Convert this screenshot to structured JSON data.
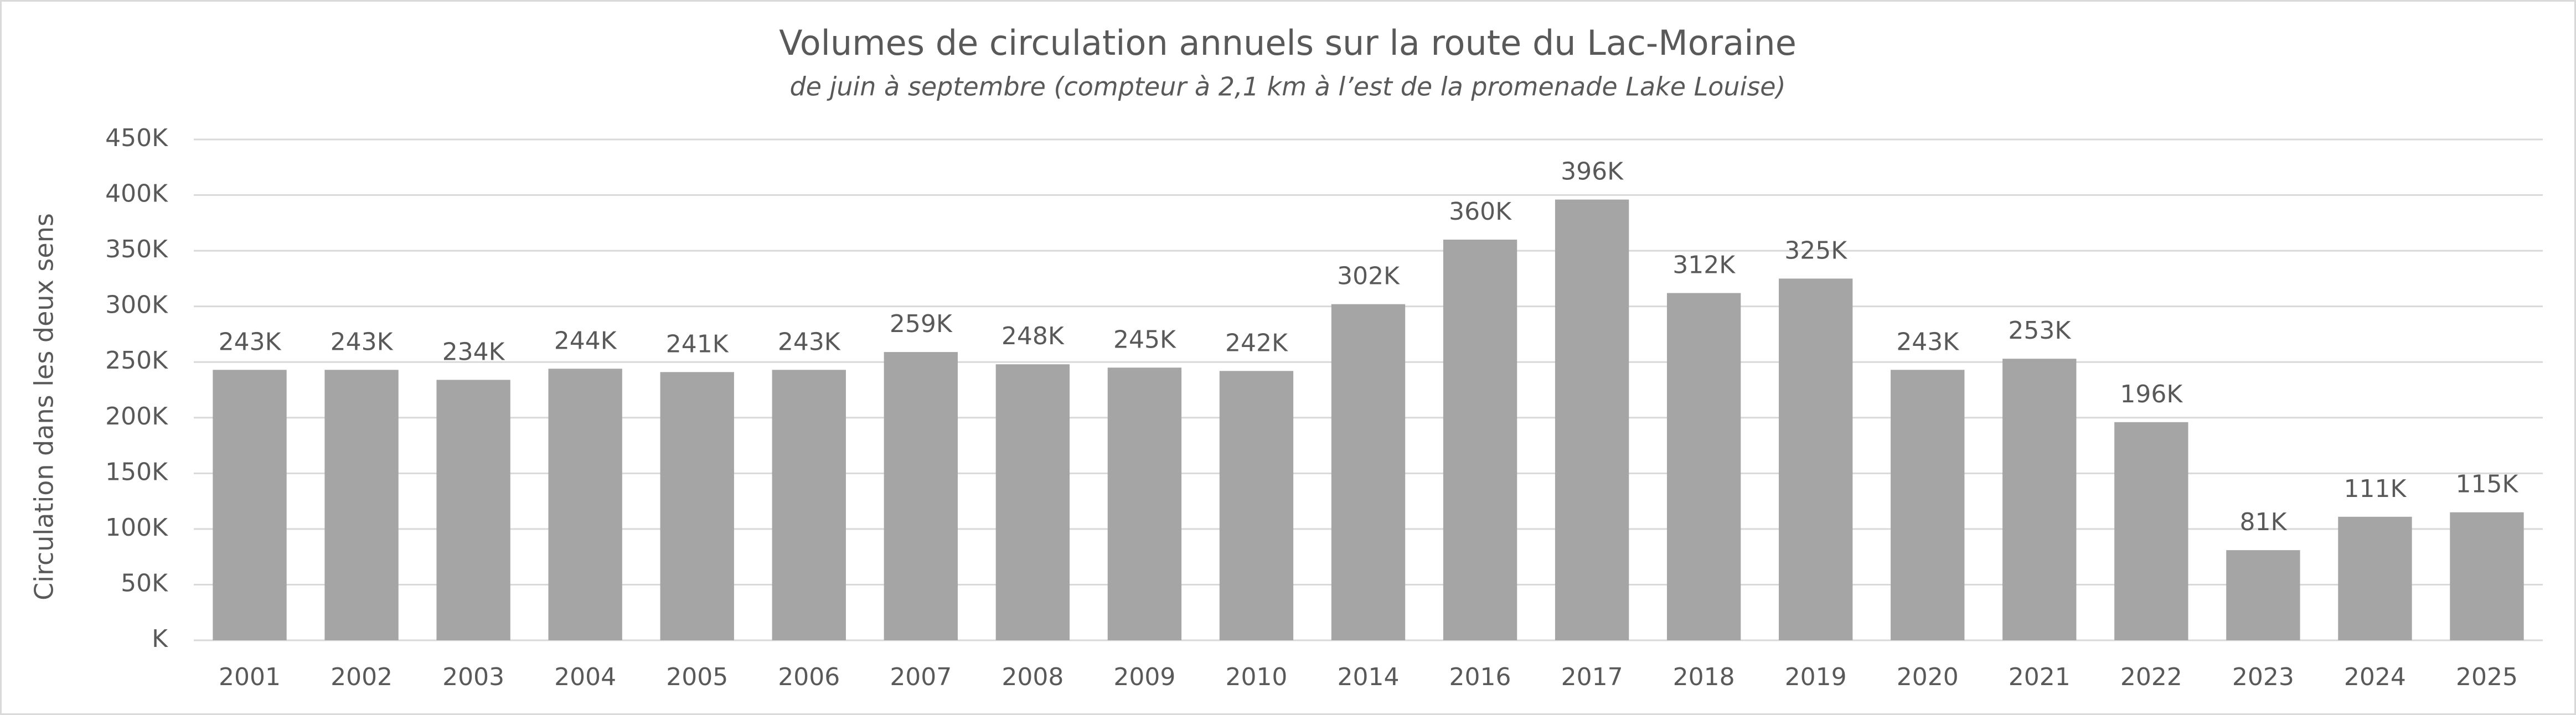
{
  "chart_data": {
    "type": "bar",
    "title": "Volumes de circulation annuels sur la route du Lac-Moraine",
    "subtitle": "de juin à septembre (compteur à 2,1 km à l’est de la promenade Lake Louise)",
    "y_label": "Circulation dans les deux sens",
    "categories": [
      "2001",
      "2002",
      "2003",
      "2004",
      "2005",
      "2006",
      "2007",
      "2008",
      "2009",
      "2010",
      "2014",
      "2016",
      "2017",
      "2018",
      "2019",
      "2020",
      "2021",
      "2022",
      "2023",
      "2024",
      "2025"
    ],
    "values": [
      243000,
      243000,
      234000,
      244000,
      241000,
      243000,
      259000,
      248000,
      245000,
      242000,
      302000,
      360000,
      396000,
      312000,
      325000,
      243000,
      253000,
      196000,
      81000,
      111000,
      115000
    ],
    "value_labels": [
      "243K",
      "243K",
      "234K",
      "244K",
      "241K",
      "243K",
      "259K",
      "248K",
      "245K",
      "242K",
      "302K",
      "360K",
      "396K",
      "312K",
      "325K",
      "243K",
      "253K",
      "196K",
      "81K",
      "111K",
      "115K"
    ],
    "color": "#a5a5a5",
    "ylim": [
      0,
      450000
    ],
    "yticks": [
      {
        "value": 0,
        "label": "K"
      },
      {
        "value": 50000,
        "label": "50K"
      },
      {
        "value": 100000,
        "label": "100K"
      },
      {
        "value": 150000,
        "label": "150K"
      },
      {
        "value": 200000,
        "label": "200K"
      },
      {
        "value": 250000,
        "label": "250K"
      },
      {
        "value": 300000,
        "label": "300K"
      },
      {
        "value": 350000,
        "label": "350K"
      },
      {
        "value": 400000,
        "label": "400K"
      },
      {
        "value": 450000,
        "label": "450K"
      }
    ],
    "grid": true
  }
}
